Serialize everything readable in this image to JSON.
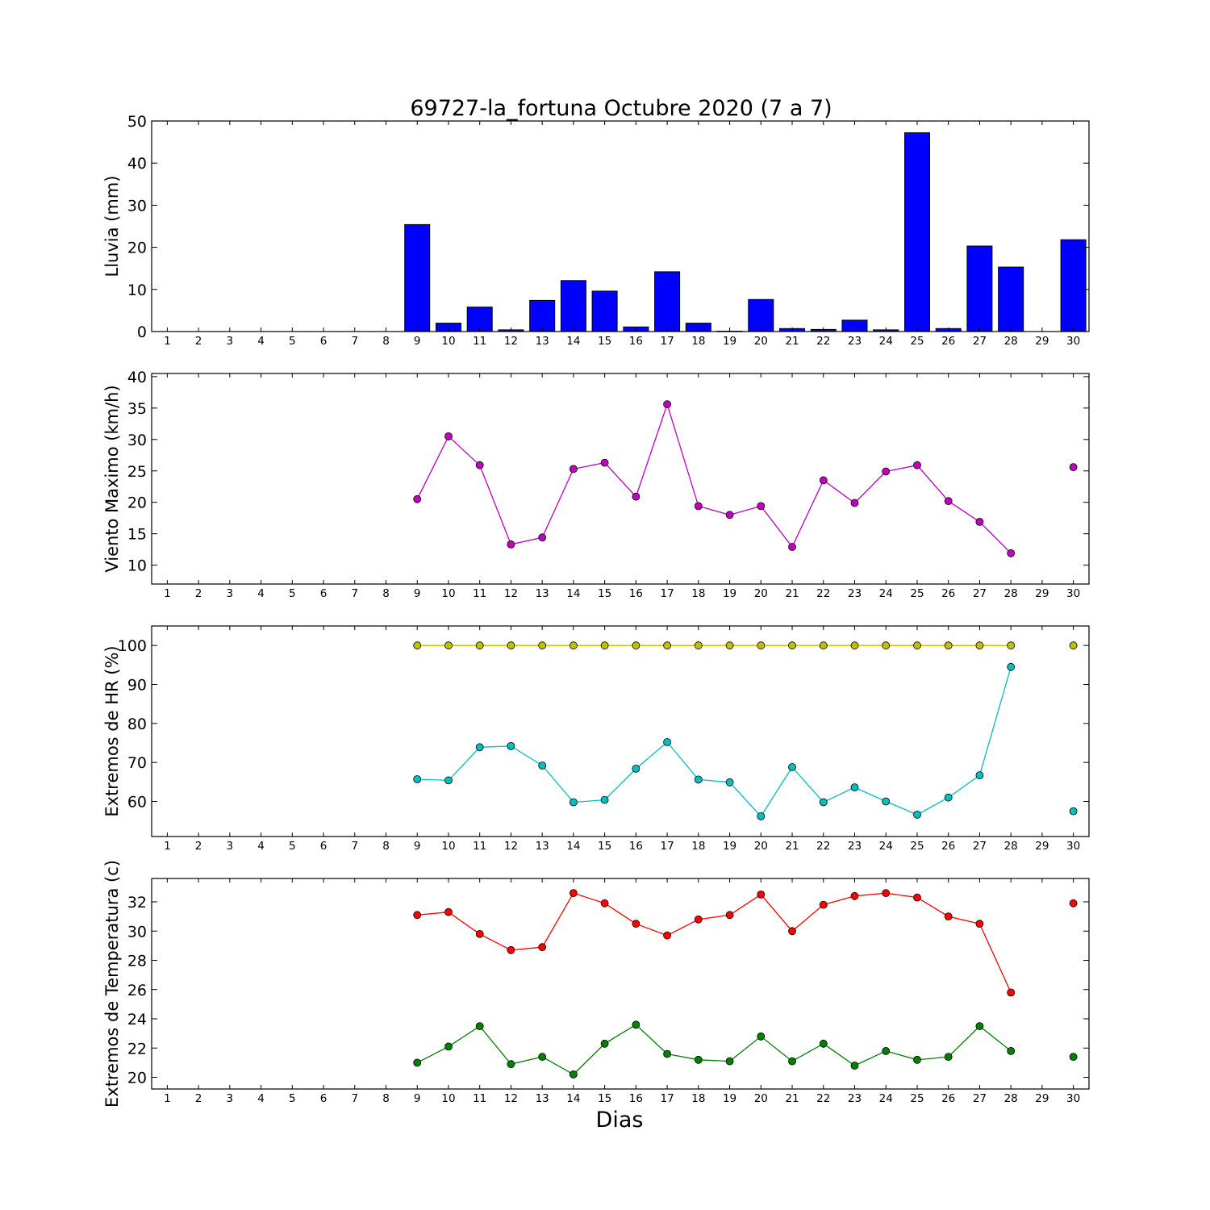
{
  "figure": {
    "title": "69727-la_fortuna Octubre 2020  (7 a 7)",
    "xlabel": "Dias"
  },
  "chart_data": [
    {
      "type": "bar",
      "ylabel": "Lluvia (mm)",
      "ylim": [
        0,
        50
      ],
      "yticks": [
        0,
        10,
        20,
        30,
        40,
        50
      ],
      "xlim": [
        0.5,
        30.5
      ],
      "categories": [
        1,
        2,
        3,
        4,
        5,
        6,
        7,
        8,
        9,
        10,
        11,
        12,
        13,
        14,
        15,
        16,
        17,
        18,
        19,
        20,
        21,
        22,
        23,
        24,
        25,
        26,
        27,
        28,
        29,
        30
      ],
      "series": [
        {
          "color": "#0000ff",
          "values": [
            null,
            null,
            null,
            null,
            null,
            null,
            null,
            null,
            25.4,
            2.0,
            5.8,
            0.4,
            7.4,
            12.1,
            9.6,
            1.1,
            14.2,
            2.0,
            0.1,
            7.6,
            0.7,
            0.5,
            2.7,
            0.4,
            47.2,
            0.7,
            20.3,
            15.3,
            null,
            21.8
          ]
        }
      ]
    },
    {
      "type": "line",
      "ylabel": "Viento Maximo (km/h)",
      "ylim": [
        7,
        40.5
      ],
      "yticks": [
        10,
        15,
        20,
        25,
        30,
        35,
        40
      ],
      "xlim": [
        0.5,
        30.5
      ],
      "x": [
        1,
        2,
        3,
        4,
        5,
        6,
        7,
        8,
        9,
        10,
        11,
        12,
        13,
        14,
        15,
        16,
        17,
        18,
        19,
        20,
        21,
        22,
        23,
        24,
        25,
        26,
        27,
        28,
        29,
        30
      ],
      "series": [
        {
          "color": "#bf00bf",
          "values": [
            null,
            null,
            null,
            null,
            null,
            null,
            null,
            null,
            20.5,
            30.5,
            25.9,
            13.3,
            14.4,
            25.3,
            26.3,
            20.9,
            35.6,
            19.4,
            18.0,
            19.4,
            12.9,
            23.5,
            19.9,
            24.9,
            25.9,
            20.2,
            16.9,
            11.9,
            null,
            25.6
          ]
        }
      ]
    },
    {
      "type": "line",
      "ylabel": "Extremos de HR (%)",
      "ylim": [
        51,
        105
      ],
      "yticks": [
        60,
        70,
        80,
        90,
        100
      ],
      "xlim": [
        0.5,
        30.5
      ],
      "x": [
        1,
        2,
        3,
        4,
        5,
        6,
        7,
        8,
        9,
        10,
        11,
        12,
        13,
        14,
        15,
        16,
        17,
        18,
        19,
        20,
        21,
        22,
        23,
        24,
        25,
        26,
        27,
        28,
        29,
        30
      ],
      "series": [
        {
          "color": "#bfbf00",
          "values": [
            null,
            null,
            null,
            null,
            null,
            null,
            null,
            null,
            100,
            100,
            100,
            100,
            100,
            100,
            100,
            100,
            100,
            100,
            100,
            100,
            100,
            100,
            100,
            100,
            100,
            100,
            100,
            100,
            null,
            100
          ]
        },
        {
          "color": "#00bfbf",
          "values": [
            null,
            null,
            null,
            null,
            null,
            null,
            null,
            null,
            65.7,
            65.4,
            73.9,
            74.2,
            69.2,
            59.8,
            60.4,
            68.4,
            75.2,
            65.6,
            64.9,
            56.2,
            68.8,
            59.8,
            63.6,
            60.0,
            56.6,
            61.0,
            66.7,
            94.5,
            null,
            57.5
          ]
        }
      ]
    },
    {
      "type": "line",
      "ylabel": "Extremos de Temperatura (c)",
      "ylim": [
        19.2,
        33.6
      ],
      "yticks": [
        20,
        22,
        24,
        26,
        28,
        30,
        32
      ],
      "xlim": [
        0.5,
        30.5
      ],
      "x": [
        1,
        2,
        3,
        4,
        5,
        6,
        7,
        8,
        9,
        10,
        11,
        12,
        13,
        14,
        15,
        16,
        17,
        18,
        19,
        20,
        21,
        22,
        23,
        24,
        25,
        26,
        27,
        28,
        29,
        30
      ],
      "series": [
        {
          "color": "#ff0000",
          "values": [
            null,
            null,
            null,
            null,
            null,
            null,
            null,
            null,
            31.1,
            31.3,
            29.8,
            28.7,
            28.9,
            32.6,
            31.9,
            30.5,
            29.7,
            30.8,
            31.1,
            32.5,
            30.0,
            31.8,
            32.4,
            32.6,
            32.3,
            31.0,
            30.5,
            25.8,
            null,
            31.9
          ]
        },
        {
          "color": "#008000",
          "values": [
            null,
            null,
            null,
            null,
            null,
            null,
            null,
            null,
            21.0,
            22.1,
            23.5,
            20.9,
            21.4,
            20.2,
            22.3,
            23.6,
            21.6,
            21.2,
            21.1,
            22.8,
            21.1,
            22.3,
            20.8,
            21.8,
            21.2,
            21.4,
            23.5,
            21.8,
            null,
            21.4
          ]
        }
      ]
    }
  ]
}
